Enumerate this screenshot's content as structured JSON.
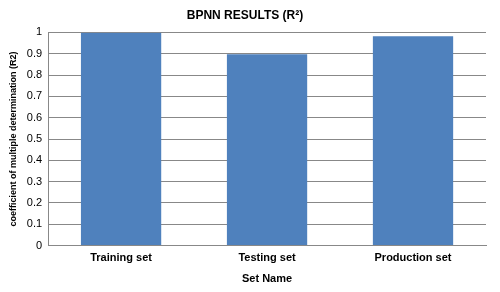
{
  "chart_data": {
    "type": "bar",
    "title": "BPNN RESULTS (R²)",
    "x_label": "Set Name",
    "y_label": "coefficient of multiple determination (R2)",
    "categories": [
      "Training set",
      "Testing set",
      "Production set"
    ],
    "values": [
      0.998,
      0.898,
      0.982
    ],
    "color": "#4f81bd",
    "ylim": [
      0,
      1
    ],
    "yticks": [
      0,
      0.1,
      0.2,
      0.3,
      0.4,
      0.5,
      0.6,
      0.7,
      0.8,
      0.9,
      1
    ],
    "grid": true
  }
}
